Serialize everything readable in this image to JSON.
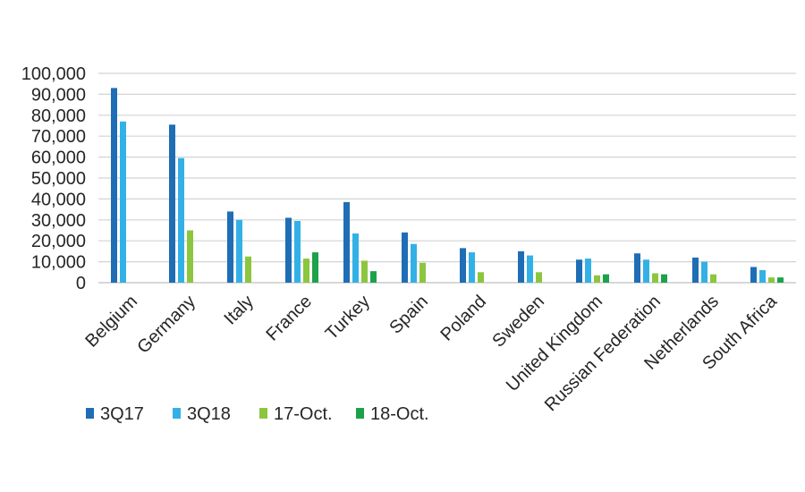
{
  "chart_data": {
    "type": "bar",
    "title": "",
    "xlabel": "",
    "ylabel": "",
    "ylim": [
      0,
      100000
    ],
    "ytick_step": 10000,
    "grid": true,
    "legend_position": "bottom-left",
    "categories": [
      "Belgium",
      "Germany",
      "Italy",
      "France",
      "Turkey",
      "Spain",
      "Poland",
      "Sweden",
      "United Kingdom",
      "Russian Federation",
      "Netherlands",
      "South Africa"
    ],
    "series": [
      {
        "name": "3Q17",
        "color": "#1f6db5",
        "values": [
          93000,
          75500,
          34000,
          31000,
          38500,
          24000,
          16500,
          15000,
          11000,
          14000,
          12000,
          7500
        ]
      },
      {
        "name": "3Q18",
        "color": "#33b1e6",
        "values": [
          77000,
          59500,
          30000,
          29500,
          23500,
          18500,
          14500,
          13000,
          11500,
          11000,
          10000,
          6000
        ]
      },
      {
        "name": "17-Oct.",
        "color": "#8cc63f",
        "values": [
          null,
          25000,
          12500,
          11500,
          10500,
          9500,
          5000,
          5000,
          3500,
          4500,
          4000,
          2500
        ]
      },
      {
        "name": "18-Oct.",
        "color": "#1ea14b",
        "values": [
          null,
          null,
          null,
          14500,
          5500,
          null,
          null,
          null,
          4000,
          4000,
          null,
          2500
        ]
      }
    ]
  }
}
